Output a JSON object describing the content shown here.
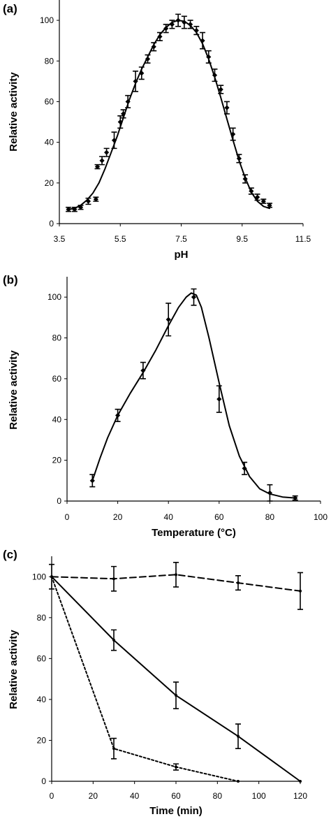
{
  "chart_data": [
    {
      "panel": "(a)",
      "type": "line",
      "xlabel": "pH",
      "ylabel": "Relative activity",
      "xlim": [
        3.5,
        11.5
      ],
      "ylim": [
        0,
        110
      ],
      "xticks": [
        "3.5",
        "5.5",
        "7.5",
        "9.5",
        "11.5"
      ],
      "yticks": [
        "0",
        "20",
        "40",
        "60",
        "80",
        "100"
      ],
      "grid": false,
      "marker": "diamond",
      "series": [
        {
          "points": [
            {
              "x": 3.8,
              "y": 7,
              "err": 1
            },
            {
              "x": 4.0,
              "y": 7,
              "err": 1
            },
            {
              "x": 4.2,
              "y": 8,
              "err": 1
            },
            {
              "x": 4.45,
              "y": 11,
              "err": 1.5
            },
            {
              "x": 4.7,
              "y": 12,
              "err": 1
            },
            {
              "x": 4.75,
              "y": 28,
              "err": 1
            },
            {
              "x": 4.9,
              "y": 31,
              "err": 2
            },
            {
              "x": 5.05,
              "y": 35,
              "err": 2
            },
            {
              "x": 5.3,
              "y": 41,
              "err": 4
            },
            {
              "x": 5.5,
              "y": 50,
              "err": 3
            },
            {
              "x": 5.6,
              "y": 54,
              "err": 2
            },
            {
              "x": 5.75,
              "y": 60,
              "err": 3
            },
            {
              "x": 6.0,
              "y": 70,
              "err": 5
            },
            {
              "x": 6.2,
              "y": 74,
              "err": 3
            },
            {
              "x": 6.4,
              "y": 81,
              "err": 2
            },
            {
              "x": 6.6,
              "y": 87,
              "err": 2
            },
            {
              "x": 6.8,
              "y": 92,
              "err": 2
            },
            {
              "x": 7.0,
              "y": 96,
              "err": 2
            },
            {
              "x": 7.2,
              "y": 98,
              "err": 2
            },
            {
              "x": 7.4,
              "y": 100,
              "err": 3
            },
            {
              "x": 7.6,
              "y": 99,
              "err": 3
            },
            {
              "x": 7.8,
              "y": 98,
              "err": 2
            },
            {
              "x": 8.0,
              "y": 95,
              "err": 2
            },
            {
              "x": 8.2,
              "y": 90,
              "err": 4
            },
            {
              "x": 8.4,
              "y": 82,
              "err": 3
            },
            {
              "x": 8.6,
              "y": 73,
              "err": 3
            },
            {
              "x": 8.8,
              "y": 66,
              "err": 2
            },
            {
              "x": 9.0,
              "y": 57,
              "err": 3
            },
            {
              "x": 9.2,
              "y": 44,
              "err": 3
            },
            {
              "x": 9.4,
              "y": 32,
              "err": 2
            },
            {
              "x": 9.6,
              "y": 22,
              "err": 2
            },
            {
              "x": 9.8,
              "y": 16,
              "err": 1.5
            },
            {
              "x": 10.0,
              "y": 13,
              "err": 1.5
            },
            {
              "x": 10.2,
              "y": 11,
              "err": 1
            },
            {
              "x": 10.4,
              "y": 9,
              "err": 1
            }
          ],
          "fit": [
            [
              3.8,
              7
            ],
            [
              4.0,
              7.5
            ],
            [
              4.2,
              9
            ],
            [
              4.4,
              11.5
            ],
            [
              4.6,
              15
            ],
            [
              4.8,
              20
            ],
            [
              5.0,
              27
            ],
            [
              5.2,
              35
            ],
            [
              5.4,
              43
            ],
            [
              5.6,
              52
            ],
            [
              5.8,
              61
            ],
            [
              6.0,
              69
            ],
            [
              6.2,
              76
            ],
            [
              6.4,
              82
            ],
            [
              6.6,
              88
            ],
            [
              6.8,
              93
            ],
            [
              7.0,
              96.5
            ],
            [
              7.2,
              99
            ],
            [
              7.4,
              100
            ],
            [
              7.6,
              99.5
            ],
            [
              7.8,
              97.5
            ],
            [
              8.0,
              94
            ],
            [
              8.2,
              88.5
            ],
            [
              8.4,
              81
            ],
            [
              8.6,
              72
            ],
            [
              8.8,
              62
            ],
            [
              9.0,
              51.5
            ],
            [
              9.2,
              41
            ],
            [
              9.4,
              31
            ],
            [
              9.6,
              22.5
            ],
            [
              9.8,
              15.5
            ],
            [
              10.0,
              11
            ],
            [
              10.2,
              8.5
            ],
            [
              10.4,
              7.5
            ]
          ]
        }
      ]
    },
    {
      "panel": "(b)",
      "type": "line",
      "xlabel": "Temperature (°C)",
      "ylabel": "Relative activity",
      "xlim": [
        0,
        100
      ],
      "ylim": [
        0,
        110
      ],
      "xticks": [
        "0",
        "20",
        "40",
        "60",
        "80",
        "100"
      ],
      "yticks": [
        "0",
        "20",
        "40",
        "60",
        "80",
        "100"
      ],
      "grid": false,
      "marker": "diamond",
      "series": [
        {
          "points": [
            {
              "x": 10,
              "y": 10,
              "err": 3
            },
            {
              "x": 20,
              "y": 42,
              "err": 3
            },
            {
              "x": 30,
              "y": 64,
              "err": 4
            },
            {
              "x": 40,
              "y": 89,
              "err": 8
            },
            {
              "x": 50,
              "y": 100,
              "err": 4
            },
            {
              "x": 60,
              "y": 50,
              "err": 6.5
            },
            {
              "x": 70,
              "y": 16,
              "err": 3
            },
            {
              "x": 80,
              "y": 4,
              "err": 4
            },
            {
              "x": 90,
              "y": 1.5,
              "err": 1
            }
          ],
          "fit": [
            [
              10,
              10
            ],
            [
              13,
              21
            ],
            [
              16,
              31
            ],
            [
              20,
              42
            ],
            [
              25,
              53
            ],
            [
              30,
              63
            ],
            [
              35,
              74
            ],
            [
              40,
              86
            ],
            [
              44,
              95
            ],
            [
              47,
              100
            ],
            [
              49,
              102
            ],
            [
              51,
              101
            ],
            [
              53,
              95
            ],
            [
              56,
              80
            ],
            [
              60,
              58
            ],
            [
              64,
              37
            ],
            [
              68,
              22
            ],
            [
              72,
              12
            ],
            [
              76,
              6
            ],
            [
              80,
              3.5
            ],
            [
              85,
              2
            ],
            [
              90,
              1.5
            ]
          ]
        }
      ]
    },
    {
      "panel": "(c)",
      "type": "line",
      "xlabel": "Time (min)",
      "ylabel": "Relative activity",
      "xlim": [
        0,
        120
      ],
      "ylim": [
        0,
        110
      ],
      "xticks": [
        "0",
        "20",
        "40",
        "60",
        "80",
        "100",
        "120"
      ],
      "yticks": [
        "0",
        "20",
        "40",
        "60",
        "80",
        "100"
      ],
      "grid": false,
      "series": [
        {
          "style": "dashed",
          "points": [
            {
              "x": 0,
              "y": 100,
              "err": 6
            },
            {
              "x": 30,
              "y": 99,
              "err": 6
            },
            {
              "x": 60,
              "y": 101,
              "err": 6
            },
            {
              "x": 90,
              "y": 97,
              "err": 3.5
            },
            {
              "x": 120,
              "y": 93,
              "err": 9
            }
          ]
        },
        {
          "style": "solid",
          "points": [
            {
              "x": 0,
              "y": 100,
              "err": 0
            },
            {
              "x": 30,
              "y": 69,
              "err": 5
            },
            {
              "x": 60,
              "y": 42,
              "err": 6.5
            },
            {
              "x": 90,
              "y": 22,
              "err": 6
            },
            {
              "x": 120,
              "y": 0,
              "err": 0
            }
          ]
        },
        {
          "style": "dotted",
          "points": [
            {
              "x": 0,
              "y": 100,
              "err": 0
            },
            {
              "x": 30,
              "y": 16,
              "err": 5
            },
            {
              "x": 60,
              "y": 7,
              "err": 1.5
            },
            {
              "x": 90,
              "y": 0,
              "err": 0
            }
          ]
        }
      ]
    }
  ]
}
